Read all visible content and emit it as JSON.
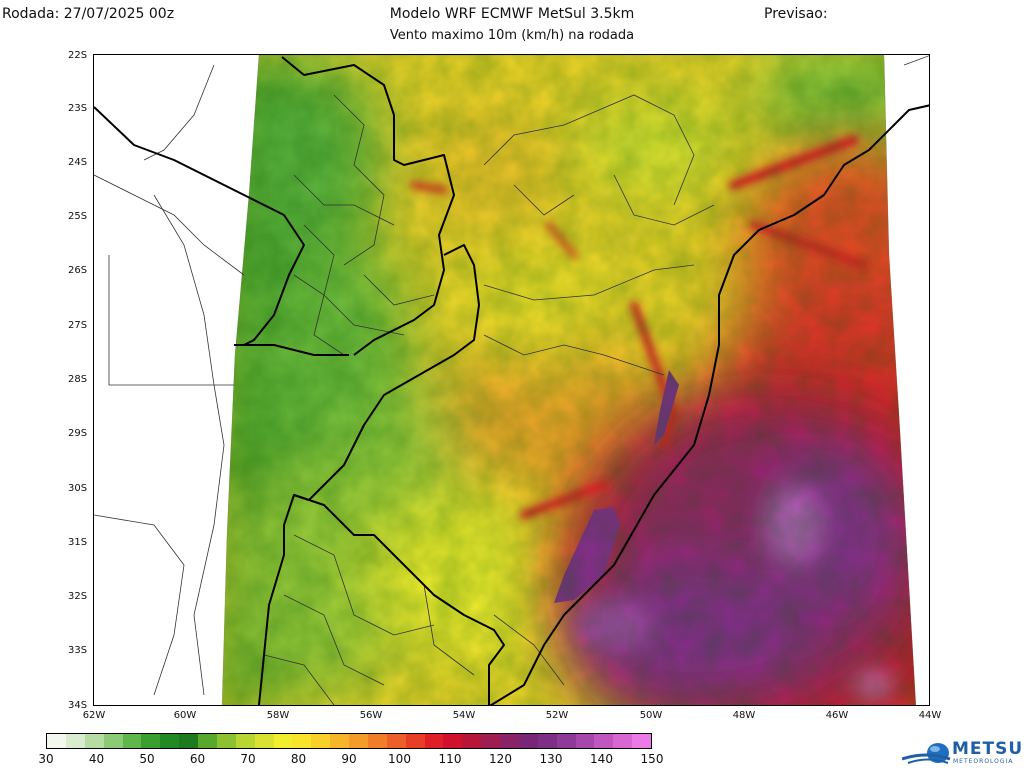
{
  "header": {
    "run": "Rodada: 27/07/2025 00z",
    "title": "Modelo WRF ECMWF MetSul 3.5km",
    "subtitle": "Vento maximo 10m (km/h) na rodada",
    "forecast": "Previsao:"
  },
  "map": {
    "lat_labels": [
      "22S",
      "23S",
      "24S",
      "25S",
      "26S",
      "27S",
      "28S",
      "29S",
      "30S",
      "31S",
      "32S",
      "33S",
      "34S"
    ],
    "lon_labels": [
      "62W",
      "60W",
      "58W",
      "56W",
      "54W",
      "52W",
      "50W",
      "48W",
      "46W",
      "44W"
    ],
    "field_colors": {
      "low": "#2e9a2a",
      "medium": "#f6ec2a",
      "high": "#ee2222",
      "very_high": "#8a2b8f"
    }
  },
  "colorbar": {
    "labels": [
      "30",
      "40",
      "50",
      "60",
      "70",
      "80",
      "90",
      "100",
      "110",
      "120",
      "130",
      "140",
      "150"
    ],
    "colors": [
      "#f2f8ef",
      "#d8ecd0",
      "#b5dca3",
      "#8ccb75",
      "#5fb74c",
      "#3a9f2e",
      "#218a22",
      "#1f7a1f",
      "#58a82c",
      "#8cc232",
      "#b7d533",
      "#d9e233",
      "#f1ee2d",
      "#f8e42a",
      "#f9cf2a",
      "#f7b62a",
      "#f49c2a",
      "#f07e29",
      "#ec5f28",
      "#e83e26",
      "#e11d25",
      "#d1102c",
      "#b8153a",
      "#a01d52",
      "#8a2267",
      "#7a2676",
      "#7d2f86",
      "#8f3a98",
      "#a647ab",
      "#c056bf",
      "#d867d2",
      "#ec7ae6"
    ]
  },
  "logo": {
    "text": "METSUL",
    "sub": "METEOROLOGIA"
  }
}
